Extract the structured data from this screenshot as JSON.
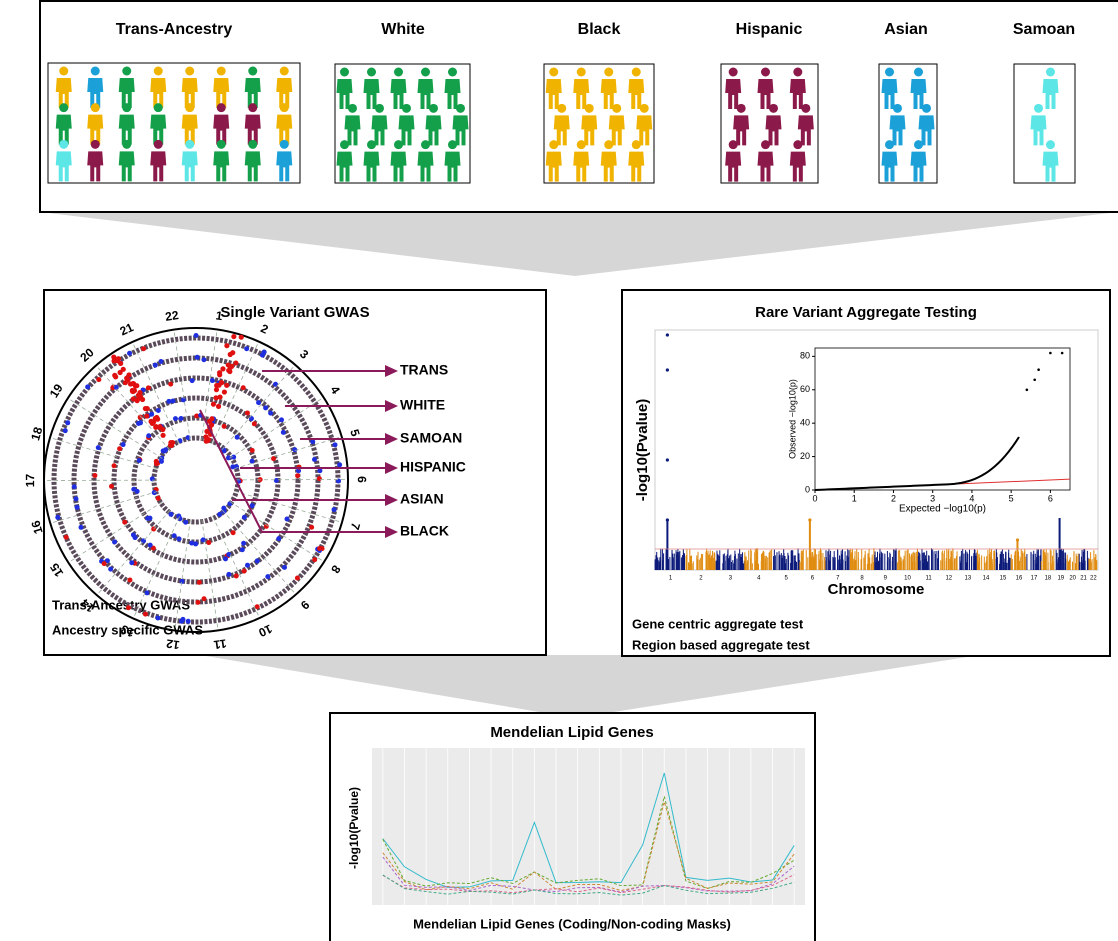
{
  "populations": {
    "groups": [
      "Trans-Ancestry",
      "White",
      "Black",
      "Hispanic",
      "Asian",
      "Samoan"
    ]
  },
  "gwas": {
    "title": "Single Variant GWAS",
    "rings": [
      "TRANS",
      "WHITE",
      "SAMOAN",
      "HISPANIC",
      "ASIAN",
      "BLACK"
    ],
    "chromosomes": [
      1,
      2,
      3,
      4,
      5,
      6,
      7,
      8,
      9,
      10,
      11,
      12,
      13,
      14,
      15,
      16,
      17,
      18,
      19,
      20,
      21,
      22
    ],
    "notes": [
      "Trans-Ancestry GWAS",
      "Ancestry specific GWAS"
    ]
  },
  "aggregate": {
    "title": "Rare Variant Aggregate Testing",
    "y_label": "-log10(Pvalue)",
    "x_label": "Chromosome",
    "chromosomes": [
      1,
      2,
      3,
      4,
      5,
      6,
      7,
      8,
      9,
      10,
      11,
      12,
      13,
      14,
      15,
      16,
      17,
      18,
      19,
      20,
      21,
      22
    ],
    "inset": {
      "x_label": "Expected −log10(p)",
      "y_label": "Observed −log10(p)",
      "xlim": [
        0,
        6.5
      ],
      "ylim": [
        0,
        85
      ],
      "xticks": [
        0,
        1,
        2,
        3,
        4,
        5,
        6
      ],
      "yticks": [
        0,
        20,
        40,
        60,
        80
      ]
    },
    "notes": [
      "Gene centric aggregate test",
      "Region based aggregate test"
    ]
  },
  "mendelian": {
    "title": "Mendelian Lipid Genes",
    "y_label": "-log10(Pvalue)",
    "x_label": "Mendelian Lipid Genes (Coding/Non-coding Masks)"
  }
}
